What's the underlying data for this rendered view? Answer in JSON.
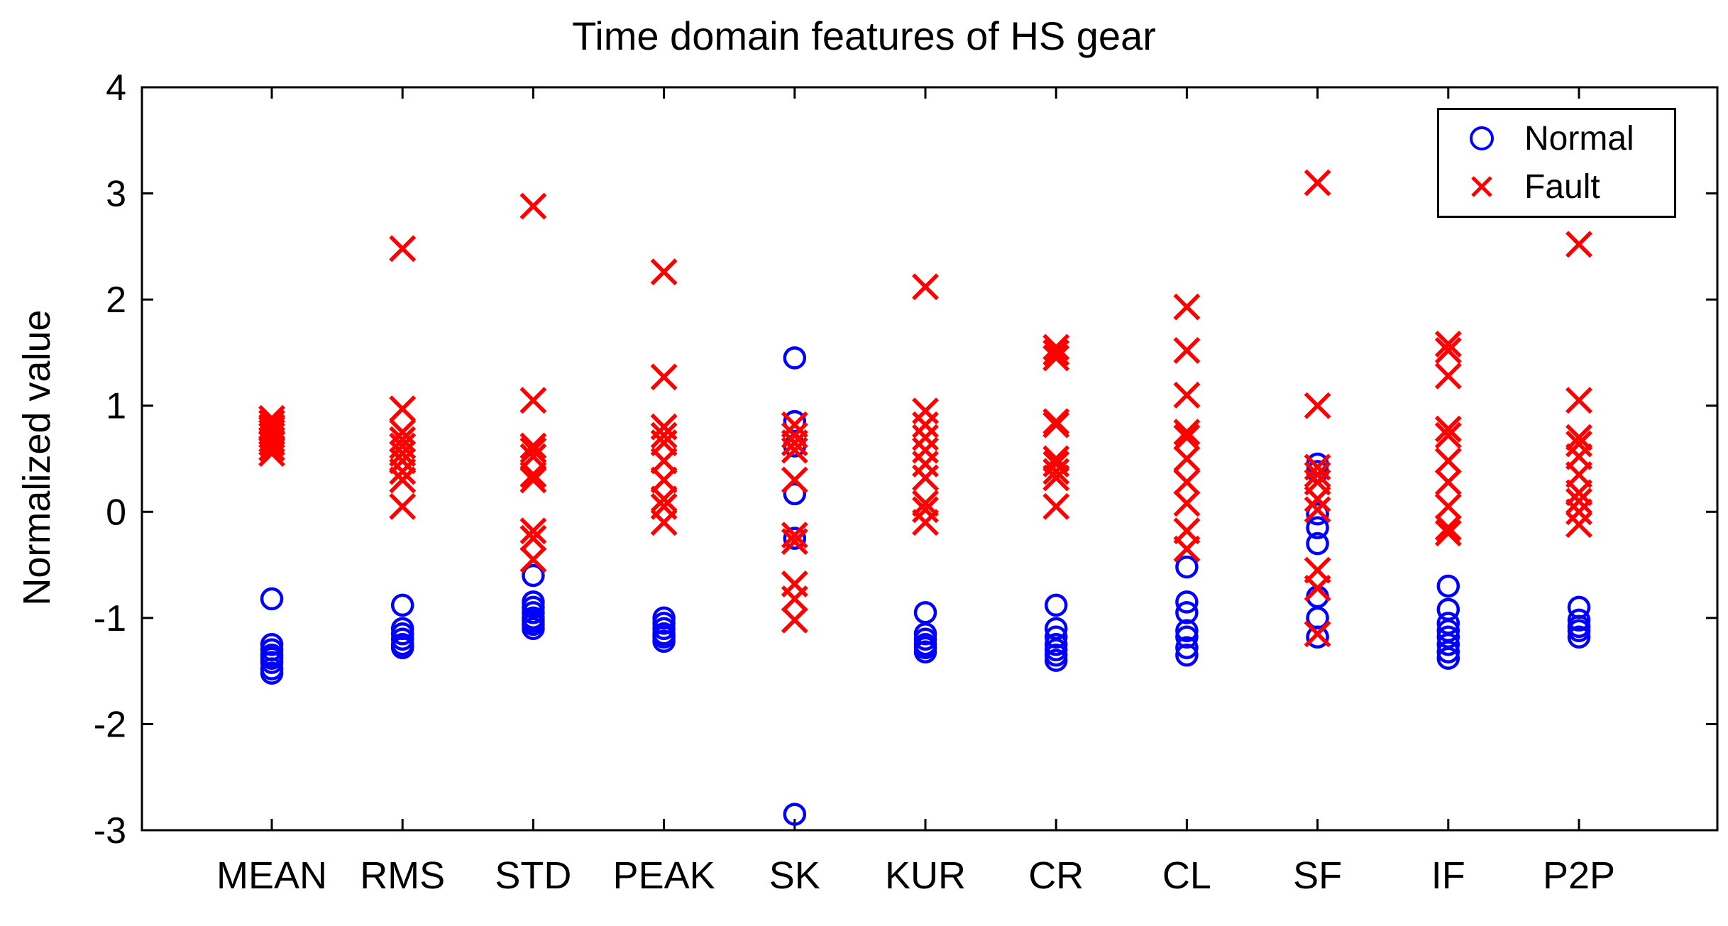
{
  "chart_data": {
    "type": "scatter",
    "title": "Time domain features of HS gear",
    "xlabel": "",
    "ylabel": "Normalized value",
    "ylim": [
      -3,
      4
    ],
    "yticks": [
      4,
      3,
      2,
      1,
      0,
      -1,
      -2,
      -3
    ],
    "grid": false,
    "legend_position": "top-right",
    "categories": [
      "MEAN",
      "RMS",
      "STD",
      "PEAK",
      "SK",
      "KUR",
      "CR",
      "CL",
      "SF",
      "IF",
      "P2P"
    ],
    "series": [
      {
        "name": "Normal",
        "marker": "circle",
        "color": "#0000FF",
        "points_by_category": {
          "MEAN": [
            -0.82,
            -1.25,
            -1.3,
            -1.35,
            -1.38,
            -1.42,
            -1.48,
            -1.52
          ],
          "RMS": [
            -0.88,
            -1.1,
            -1.15,
            -1.2,
            -1.25,
            -1.28
          ],
          "STD": [
            -0.6,
            -0.85,
            -0.9,
            -0.95,
            -1.0,
            -1.03,
            -1.06,
            -1.1
          ],
          "PEAK": [
            -1.0,
            -1.05,
            -1.1,
            -1.15,
            -1.18,
            -1.22
          ],
          "SK": [
            1.45,
            0.85,
            0.62,
            0.17,
            -0.25,
            -2.85
          ],
          "KUR": [
            -0.95,
            -1.15,
            -1.2,
            -1.25,
            -1.28,
            -1.32
          ],
          "CR": [
            -0.88,
            -1.1,
            -1.18,
            -1.25,
            -1.3,
            -1.35,
            -1.4
          ],
          "CL": [
            -0.52,
            -0.85,
            -0.95,
            -1.12,
            -1.18,
            -1.28,
            -1.35
          ],
          "SF": [
            0.45,
            0.38,
            -0.02,
            -0.15,
            -0.3,
            -0.8,
            -1.0,
            -1.18
          ],
          "IF": [
            -0.7,
            -0.92,
            -1.05,
            -1.12,
            -1.18,
            -1.25,
            -1.32,
            -1.38
          ],
          "P2P": [
            -0.9,
            -1.02,
            -1.08,
            -1.12,
            -1.18
          ]
        }
      },
      {
        "name": "Fault",
        "marker": "x",
        "color": "#FF0000",
        "points_by_category": {
          "MEAN": [
            0.88,
            0.84,
            0.8,
            0.78,
            0.75,
            0.72,
            0.68,
            0.65,
            0.6,
            0.55
          ],
          "RMS": [
            2.48,
            0.97,
            0.75,
            0.68,
            0.62,
            0.55,
            0.48,
            0.38,
            0.3,
            0.05
          ],
          "STD": [
            2.88,
            1.05,
            0.62,
            0.58,
            0.52,
            0.35,
            0.3,
            -0.18,
            -0.25,
            -0.45
          ],
          "PEAK": [
            2.26,
            1.27,
            0.8,
            0.72,
            0.65,
            0.48,
            0.3,
            0.12,
            0.05,
            -0.1
          ],
          "SK": [
            0.82,
            0.72,
            0.65,
            0.58,
            0.3,
            -0.22,
            -0.28,
            -0.68,
            -0.82,
            -1.02
          ],
          "KUR": [
            2.12,
            0.95,
            0.82,
            0.7,
            0.58,
            0.45,
            0.32,
            0.08,
            0.02,
            -0.1
          ],
          "CR": [
            1.55,
            1.5,
            1.45,
            0.85,
            0.82,
            0.5,
            0.45,
            0.38,
            0.32,
            0.05
          ],
          "CL": [
            1.93,
            1.52,
            1.1,
            0.75,
            0.7,
            0.5,
            0.28,
            0.08,
            -0.18,
            -0.35
          ],
          "SF": [
            3.1,
            1.0,
            0.42,
            0.35,
            0.28,
            0.12,
            0.02,
            -0.55,
            -0.72,
            -1.15
          ],
          "IF": [
            1.58,
            1.52,
            1.28,
            0.78,
            0.72,
            0.48,
            0.28,
            0.05,
            -0.15,
            -0.2
          ],
          "P2P": [
            2.52,
            1.05,
            0.7,
            0.64,
            0.52,
            0.35,
            0.18,
            0.1,
            0.0,
            -0.12
          ]
        }
      }
    ],
    "colors": {
      "normal": "#0000FF",
      "fault": "#FF0000",
      "axis": "#000000",
      "background": "#FFFFFF"
    }
  }
}
